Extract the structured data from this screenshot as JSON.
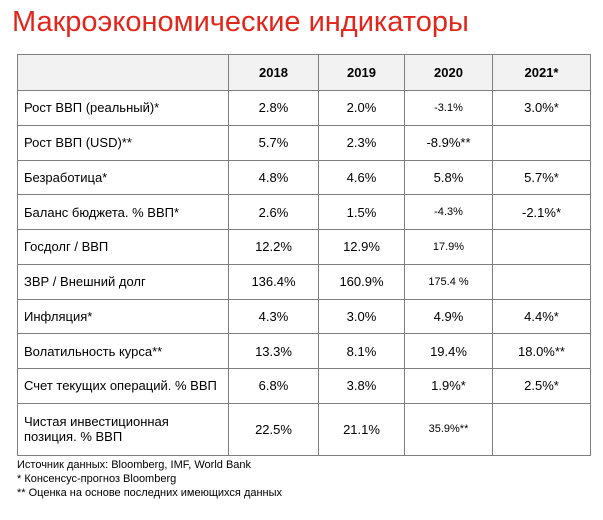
{
  "title": "Макроэкономические индикаторы",
  "table": {
    "header": [
      "",
      "2018",
      "2019",
      "2020",
      "2021*"
    ],
    "rows": [
      {
        "label": "Рост ВВП (реальный)*",
        "values": [
          "2.8%",
          "2.0%",
          "-3.1%",
          "3.0%*"
        ],
        "small": [
          false,
          false,
          true,
          false
        ]
      },
      {
        "label": "Рост ВВП (USD)**",
        "values": [
          "5.7%",
          "2.3%",
          "-8.9%**",
          ""
        ],
        "small": [
          false,
          false,
          false,
          false
        ]
      },
      {
        "label": "Безработица*",
        "values": [
          "4.8%",
          "4.6%",
          "5.8%",
          "5.7%*"
        ],
        "small": [
          false,
          false,
          false,
          false
        ]
      },
      {
        "label": "Баланс бюджета. % ВВП*",
        "values": [
          "2.6%",
          "1.5%",
          "-4.3%",
          "-2.1%*"
        ],
        "small": [
          false,
          false,
          true,
          false
        ]
      },
      {
        "label": "Госдолг / ВВП",
        "values": [
          "12.2%",
          "12.9%",
          "17.9%",
          ""
        ],
        "small": [
          false,
          false,
          true,
          false
        ]
      },
      {
        "label": "ЗВР / Внешний долг",
        "values": [
          "136.4%",
          "160.9%",
          "175.4 %",
          ""
        ],
        "small": [
          false,
          false,
          true,
          false
        ]
      },
      {
        "label": "Инфляция*",
        "values": [
          "4.3%",
          "3.0%",
          "4.9%",
          "4.4%*"
        ],
        "small": [
          false,
          false,
          false,
          false
        ]
      },
      {
        "label": "Волатильность курса**",
        "values": [
          "13.3%",
          "8.1%",
          "19.4%",
          "18.0%**"
        ],
        "small": [
          false,
          false,
          false,
          false
        ]
      },
      {
        "label": "Счет текущих операций. % ВВП",
        "values": [
          "6.8%",
          "3.8%",
          "1.9%*",
          "2.5%*"
        ],
        "small": [
          false,
          false,
          false,
          false
        ]
      },
      {
        "label": "Чистая инвестиционная позиция. % ВВП",
        "values": [
          "22.5%",
          "21.1%",
          "35.9%**",
          ""
        ],
        "small": [
          false,
          false,
          true,
          false
        ],
        "tall": true
      }
    ]
  },
  "notes": [
    "Источник данных: Bloomberg, IMF, World Bank",
    "* Консенсус-прогноз Bloomberg",
    "** Оценка на основе последних имеющихся данных"
  ]
}
